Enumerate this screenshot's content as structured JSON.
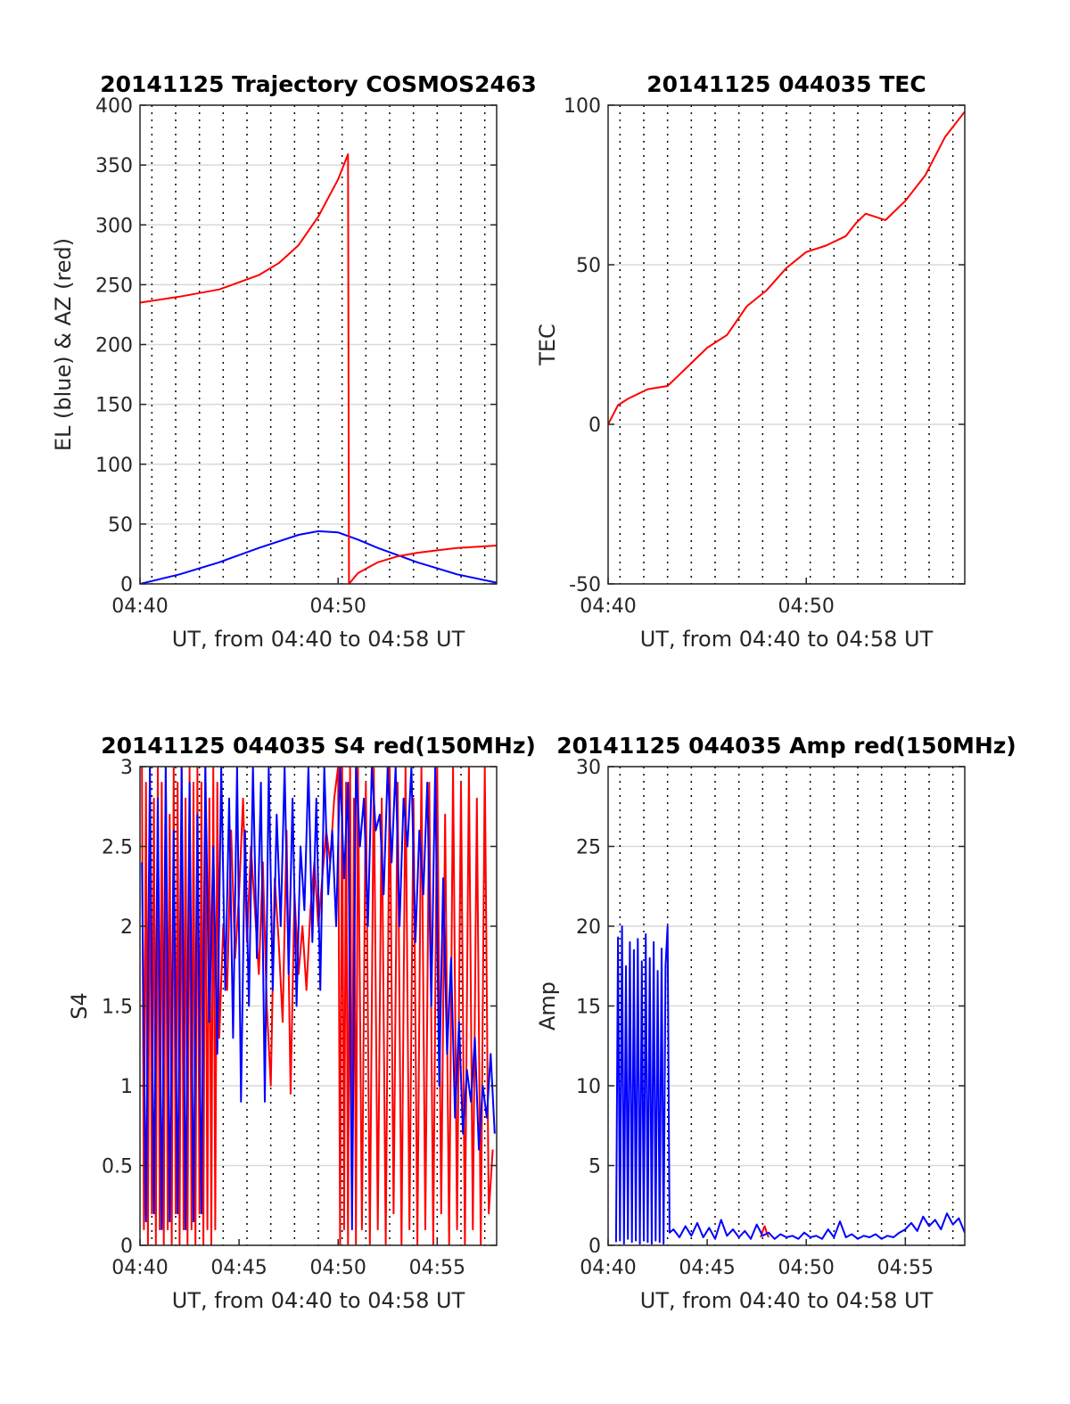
{
  "colors": {
    "el": "#0000ff",
    "az": "#ff0000",
    "tec": "#ff0000",
    "s4_a": "#ff0000",
    "s4_b": "#0000ff",
    "amp_a": "#ff0000",
    "amp_b": "#0000ff",
    "axes": "#262626",
    "grid": "#d9d9d9",
    "vgrid": "#000000"
  },
  "chart_data": [
    {
      "id": "trajectory",
      "type": "line",
      "title": "20141125 Trajectory COSMOS2463",
      "xlabel": "UT, from 04:40 to 04:58 UT",
      "ylabel": "EL (blue) & AZ (red)",
      "xlim": [
        0,
        18
      ],
      "ylim": [
        0,
        400
      ],
      "xticks": [
        0,
        10
      ],
      "xtick_labels": [
        "04:40",
        "04:50"
      ],
      "yticks": [
        0,
        50,
        100,
        150,
        200,
        250,
        300,
        350,
        400
      ],
      "ytick_labels": [
        "0",
        "50",
        "100",
        "150",
        "200",
        "250",
        "300",
        "350",
        "400"
      ],
      "grid": "horizontal solid, vertical dotted",
      "series": [
        {
          "color": "#0000ff",
          "x": [
            0,
            2,
            4,
            6,
            8,
            9,
            10,
            11,
            12,
            14,
            16,
            18
          ],
          "y": [
            0,
            8,
            18,
            30,
            41,
            44,
            43,
            37,
            30,
            18,
            8,
            1
          ]
        },
        {
          "color": "#ff0000",
          "x": [
            0,
            2,
            4,
            6,
            7,
            8,
            9,
            10,
            10.5,
            10.55,
            11,
            12,
            13,
            14,
            15,
            16,
            17,
            18
          ],
          "y": [
            235,
            240,
            246,
            258,
            268,
            283,
            307,
            338,
            359,
            0,
            9,
            18,
            23,
            26,
            28,
            30,
            31,
            32
          ]
        }
      ]
    },
    {
      "id": "tec",
      "type": "line",
      "title": "20141125 044035 TEC",
      "xlabel": "UT, from 04:40 to 04:58 UT",
      "ylabel": "TEC",
      "xlim": [
        0,
        18
      ],
      "ylim": [
        -50,
        100
      ],
      "xticks": [
        0,
        10
      ],
      "xtick_labels": [
        "04:40",
        "04:50"
      ],
      "yticks": [
        -50,
        0,
        50,
        100
      ],
      "ytick_labels": [
        "-50",
        "0",
        "50",
        "100"
      ],
      "grid": "horizontal solid, vertical dotted",
      "series": [
        {
          "color": "#ff0000",
          "x": [
            0,
            0.5,
            1,
            2,
            3,
            4,
            5,
            6,
            7,
            8,
            9,
            10,
            11,
            12,
            12.5,
            13,
            14,
            15,
            16,
            17,
            18
          ],
          "y": [
            0,
            6,
            8,
            11,
            12,
            18,
            24,
            28,
            37,
            42,
            49,
            54,
            56,
            59,
            63,
            66,
            64,
            70,
            78,
            90,
            98
          ]
        }
      ]
    },
    {
      "id": "s4",
      "type": "line",
      "title": "20141125 044035 S4 red(150MHz)",
      "xlabel": "UT, from 04:40 to 04:58 UT",
      "ylabel": "S4",
      "xlim": [
        0,
        18
      ],
      "ylim": [
        0,
        3
      ],
      "xticks": [
        0,
        5,
        10,
        15
      ],
      "xtick_labels": [
        "04:40",
        "04:45",
        "04:50",
        "04:55"
      ],
      "yticks": [
        0,
        0.5,
        1,
        1.5,
        2,
        2.5,
        3
      ],
      "ytick_labels": [
        "0",
        "0.5",
        "1",
        "1.5",
        "2",
        "2.5",
        "3"
      ],
      "grid": "horizontal solid, vertical dotted",
      "series": [
        {
          "color": "#ff0000",
          "x": [
            0.1,
            0.2,
            0.3,
            0.4,
            0.5,
            0.6,
            0.7,
            0.8,
            0.9,
            1.0,
            1.1,
            1.2,
            1.3,
            1.4,
            1.5,
            1.6,
            1.7,
            1.8,
            1.9,
            2.0,
            2.1,
            2.2,
            2.3,
            2.4,
            2.5,
            2.6,
            2.7,
            2.8,
            2.9,
            3.0,
            3.1,
            3.2,
            3.3,
            3.4,
            3.5,
            3.6,
            3.7,
            3.8,
            3.9,
            4.0,
            4.2,
            4.4,
            4.6,
            4.8,
            5.0,
            5.2,
            5.4,
            5.6,
            5.8,
            6.0,
            6.2,
            6.4,
            6.6,
            6.8,
            7.0,
            7.2,
            7.4,
            7.6,
            7.8,
            8.0,
            8.2,
            8.4,
            8.6,
            8.8,
            9.0,
            9.2,
            9.4,
            9.6,
            9.8,
            10.0,
            10.1,
            10.2,
            10.3,
            10.4,
            10.5,
            10.6,
            10.7,
            10.8,
            10.9,
            11.0,
            11.2,
            11.4,
            11.6,
            11.8,
            12.0,
            12.2,
            12.4,
            12.6,
            12.8,
            13.0,
            13.2,
            13.4,
            13.6,
            13.8,
            14.0,
            14.2,
            14.4,
            14.6,
            14.8,
            15.0,
            15.2,
            15.4,
            15.6,
            15.8,
            16.0,
            16.2,
            16.4,
            16.6,
            16.8,
            17.0,
            17.2,
            17.4,
            17.6,
            17.8
          ],
          "y": [
            3.0,
            0.1,
            2.9,
            0.0,
            3.0,
            0.2,
            2.8,
            0.0,
            3.0,
            0.1,
            2.9,
            0.0,
            3.0,
            0.1,
            2.7,
            0.0,
            3.0,
            0.2,
            2.9,
            0.0,
            3.0,
            0.1,
            2.8,
            0.0,
            3.0,
            0.1,
            2.9,
            0.0,
            3.0,
            0.2,
            2.9,
            0.0,
            3.0,
            0.1,
            2.8,
            0.0,
            3.0,
            0.1,
            2.9,
            1.3,
            2.0,
            1.6,
            2.6,
            1.8,
            2.2,
            2.8,
            1.9,
            2.5,
            2.1,
            1.7,
            2.4,
            1.5,
            1.0,
            2.3,
            1.9,
            1.4,
            2.6,
            0.95,
            2.2,
            1.7,
            2.0,
            1.6,
            2.1,
            2.4,
            2.0,
            2.3,
            2.6,
            2.4,
            2.8,
            3.0,
            0.0,
            3.0,
            0.1,
            2.9,
            0.0,
            3.0,
            0.2,
            2.8,
            0.0,
            3.0,
            0.1,
            2.9,
            0.0,
            3.0,
            0.1,
            2.8,
            0.0,
            3.0,
            0.2,
            2.9,
            0.0,
            3.0,
            0.1,
            2.8,
            0.0,
            3.0,
            0.1,
            2.9,
            0.0,
            3.0,
            0.2,
            2.7,
            0.0,
            3.0,
            0.1,
            2.9,
            0.0,
            3.0,
            0.1,
            2.8,
            0.0,
            3.0,
            0.2,
            0.6
          ]
        },
        {
          "color": "#0000ff",
          "x": [
            0.1,
            0.3,
            0.5,
            0.7,
            0.9,
            1.1,
            1.3,
            1.5,
            1.7,
            1.9,
            2.1,
            2.3,
            2.5,
            2.7,
            2.9,
            3.1,
            3.3,
            3.5,
            3.7,
            3.9,
            4.1,
            4.3,
            4.5,
            4.7,
            4.9,
            5.1,
            5.3,
            5.5,
            5.7,
            5.9,
            6.1,
            6.3,
            6.5,
            6.7,
            6.9,
            7.1,
            7.3,
            7.5,
            7.7,
            7.9,
            8.1,
            8.3,
            8.5,
            8.7,
            8.9,
            9.1,
            9.3,
            9.5,
            9.7,
            9.9,
            10.1,
            10.3,
            10.5,
            10.7,
            10.9,
            11.1,
            11.3,
            11.5,
            11.7,
            11.9,
            12.1,
            12.3,
            12.5,
            12.7,
            12.9,
            13.1,
            13.3,
            13.5,
            13.7,
            13.9,
            14.1,
            14.3,
            14.5,
            14.7,
            14.9,
            15.1,
            15.3,
            15.5,
            15.7,
            15.9,
            16.1,
            16.3,
            16.5,
            16.7,
            16.9,
            17.1,
            17.3,
            17.5,
            17.7,
            17.9
          ],
          "y": [
            2.4,
            0.15,
            3.0,
            0.2,
            2.8,
            0.1,
            3.0,
            0.15,
            2.6,
            0.2,
            3.0,
            0.1,
            2.9,
            0.15,
            2.7,
            0.2,
            3.0,
            1.4,
            2.5,
            1.2,
            3.0,
            1.6,
            2.8,
            1.3,
            3.0,
            0.9,
            2.6,
            1.5,
            3.0,
            1.8,
            2.9,
            0.9,
            3.0,
            1.6,
            2.7,
            2.0,
            3.0,
            1.7,
            2.8,
            1.5,
            2.5,
            2.1,
            3.0,
            1.9,
            2.8,
            1.6,
            3.0,
            2.2,
            2.6,
            2.0,
            3.0,
            2.3,
            2.9,
            0.1,
            3.0,
            2.5,
            2.8,
            2.0,
            3.0,
            2.6,
            2.7,
            2.2,
            3.0,
            2.4,
            3.0,
            2.0,
            2.8,
            2.5,
            3.0,
            1.9,
            2.6,
            2.2,
            2.9,
            1.5,
            3.0,
            1.0,
            2.3,
            1.2,
            1.8,
            0.8,
            1.4,
            0.7,
            1.1,
            0.9,
            1.3,
            0.6,
            1.0,
            0.8,
            1.2,
            0.7
          ]
        }
      ]
    },
    {
      "id": "amp",
      "type": "line",
      "title": "20141125 044035 Amp red(150MHz)",
      "xlabel": "UT, from 04:40 to 04:58 UT",
      "ylabel": "Amp",
      "xlim": [
        0,
        18
      ],
      "ylim": [
        0,
        30
      ],
      "xticks": [
        0,
        5,
        10,
        15
      ],
      "xtick_labels": [
        "04:40",
        "04:45",
        "04:50",
        "04:55"
      ],
      "yticks": [
        0,
        5,
        10,
        15,
        20,
        25,
        30
      ],
      "ytick_labels": [
        "0",
        "5",
        "10",
        "15",
        "20",
        "25",
        "30"
      ],
      "grid": "horizontal solid, vertical dotted",
      "series": [
        {
          "color": "#ff0000",
          "x": [
            7.7,
            7.8,
            7.9,
            8.0,
            8.1
          ],
          "y": [
            0.5,
            0.9,
            1.2,
            0.8,
            0.5
          ]
        },
        {
          "color": "#0000ff",
          "x": [
            0.4,
            0.5,
            0.6,
            0.7,
            0.8,
            0.9,
            1.0,
            1.1,
            1.2,
            1.3,
            1.4,
            1.5,
            1.6,
            1.7,
            1.8,
            1.9,
            2.0,
            2.1,
            2.2,
            2.3,
            2.4,
            2.5,
            2.6,
            2.7,
            2.8,
            2.9,
            3.0,
            3.1,
            3.3,
            3.6,
            3.9,
            4.2,
            4.5,
            4.8,
            5.1,
            5.4,
            5.7,
            6.0,
            6.3,
            6.6,
            6.9,
            7.2,
            7.5,
            7.8,
            8.1,
            8.4,
            8.7,
            9.0,
            9.3,
            9.6,
            9.9,
            10.2,
            10.5,
            10.8,
            11.1,
            11.4,
            11.7,
            12.0,
            12.3,
            12.6,
            12.9,
            13.2,
            13.5,
            13.8,
            14.1,
            14.4,
            14.7,
            15.0,
            15.3,
            15.6,
            15.9,
            16.2,
            16.5,
            16.8,
            17.1,
            17.4,
            17.7,
            18.0
          ],
          "y": [
            0.2,
            19.3,
            0.3,
            20.0,
            0.1,
            17.5,
            0.4,
            19.0,
            0.2,
            18.5,
            0.3,
            19.2,
            0.1,
            17.8,
            0.3,
            19.5,
            0.2,
            18.0,
            0.1,
            19.0,
            0.3,
            17.2,
            0.2,
            18.6,
            0.1,
            17.5,
            20.0,
            0.8,
            1.0,
            0.5,
            1.2,
            0.6,
            1.4,
            0.5,
            1.1,
            0.4,
            1.6,
            0.6,
            1.0,
            0.5,
            0.9,
            0.4,
            1.3,
            0.6,
            0.8,
            0.4,
            0.7,
            0.5,
            0.6,
            0.4,
            0.8,
            0.5,
            0.6,
            0.4,
            1.0,
            0.5,
            1.5,
            0.5,
            0.7,
            0.4,
            0.6,
            0.5,
            0.7,
            0.4,
            0.6,
            0.5,
            0.8,
            1.0,
            1.4,
            0.9,
            1.8,
            1.2,
            1.6,
            1.0,
            2.0,
            1.3,
            1.7,
            0.8
          ]
        }
      ]
    }
  ]
}
